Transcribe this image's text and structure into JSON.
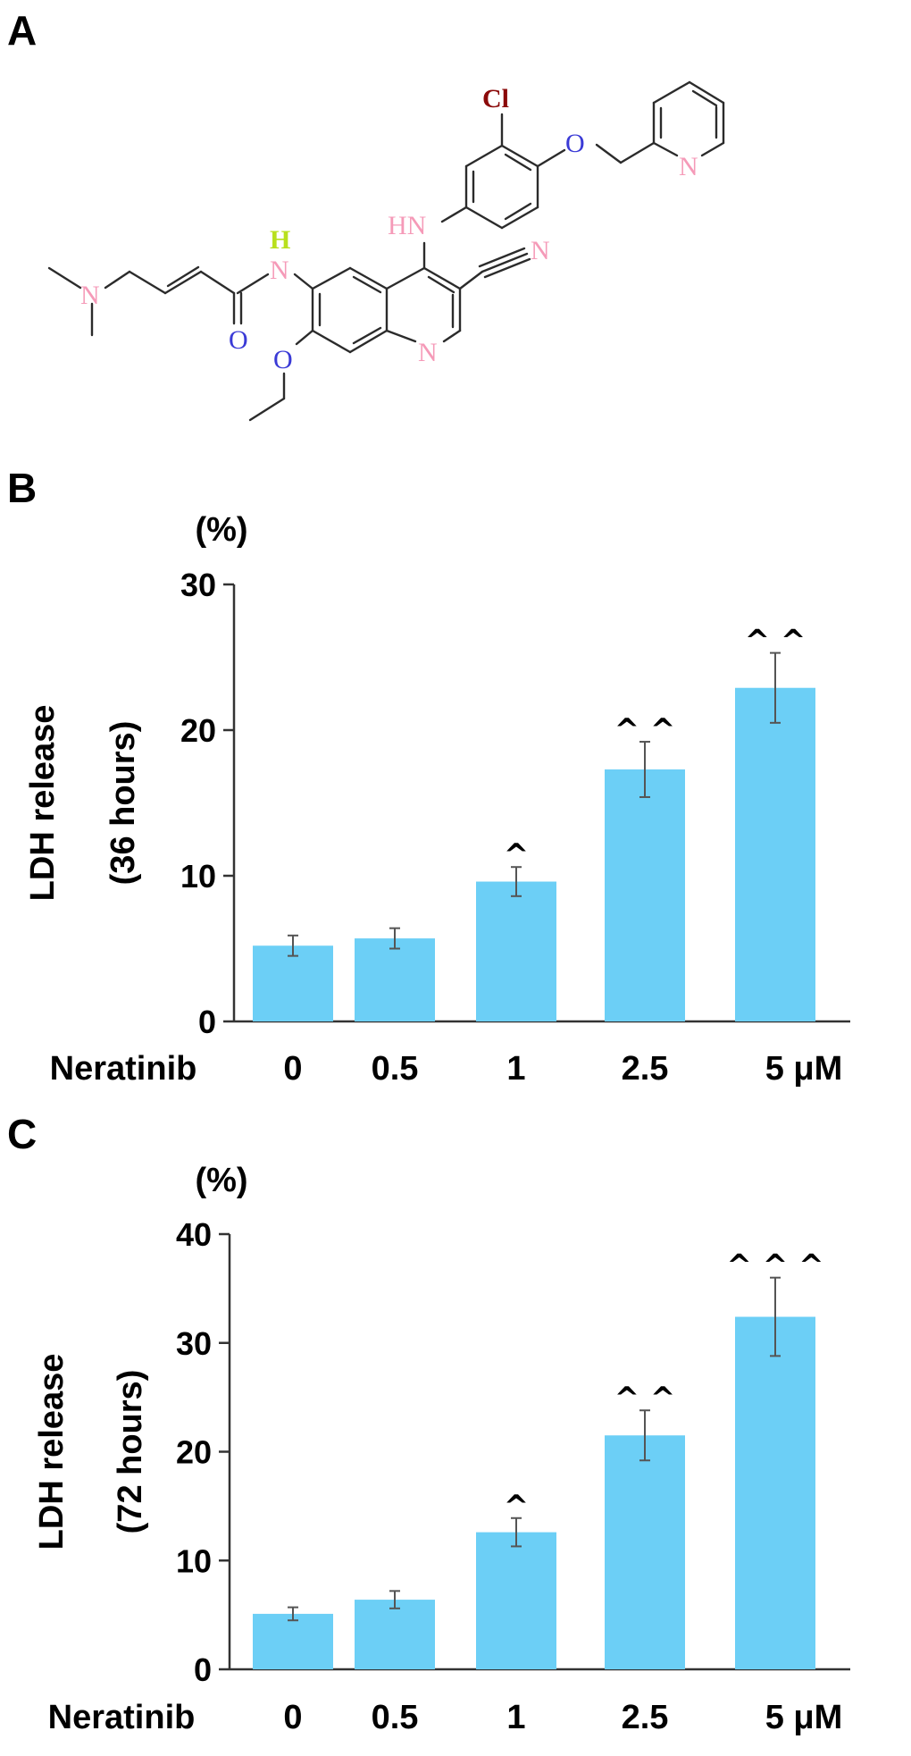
{
  "panels": {
    "a": {
      "label": "A"
    },
    "b": {
      "label": "B"
    },
    "c": {
      "label": "C"
    }
  },
  "structure": {
    "atoms": {
      "cl": "Cl",
      "o_ether": "O",
      "n_pyridine": "N",
      "hn_anilino": "HN",
      "n_nitrile": "N",
      "h_amide": "H",
      "n_amide": "N",
      "n_dimethyl": "N",
      "o_carbonyl": "O",
      "o_ethoxy": "O",
      "n_quinoline": "N"
    }
  },
  "colors": {
    "bar": "#6ccff6",
    "nitrogen": "#f59ab8",
    "oxygen": "#3a3ad6",
    "chlorine": "#8b0a0a",
    "hydrogen": "#b8e01c",
    "bond": "#2b2b2b"
  },
  "chart_data": [
    {
      "type": "bar",
      "panel": "B",
      "unit_label": "(%)",
      "ylabel_line1": "LDH release",
      "ylabel_line2": "(36 hours)",
      "xlabel": "Neratinib",
      "categories": [
        "0",
        "0.5",
        "1",
        "2.5",
        "5 μM"
      ],
      "values": [
        5.2,
        5.7,
        9.6,
        17.3,
        22.9
      ],
      "errors": [
        0.7,
        0.7,
        1.0,
        1.9,
        2.4
      ],
      "annotations": [
        "",
        "",
        "^",
        "^ ^",
        "^ ^"
      ],
      "ylim": [
        0,
        30
      ],
      "yticks": [
        "0",
        "10",
        "20",
        "30"
      ]
    },
    {
      "type": "bar",
      "panel": "C",
      "unit_label": "(%)",
      "ylabel_line1": "LDH release",
      "ylabel_line2": "(72 hours)",
      "xlabel": "Neratinib",
      "categories": [
        "0",
        "0.5",
        "1",
        "2.5",
        "5 μM"
      ],
      "values": [
        5.1,
        6.4,
        12.6,
        21.5,
        32.4
      ],
      "errors": [
        0.6,
        0.8,
        1.3,
        2.3,
        3.6
      ],
      "annotations": [
        "",
        "",
        "^",
        "^ ^",
        "^ ^ ^"
      ],
      "ylim": [
        0,
        40
      ],
      "yticks": [
        "0",
        "10",
        "20",
        "30",
        "40"
      ]
    }
  ]
}
